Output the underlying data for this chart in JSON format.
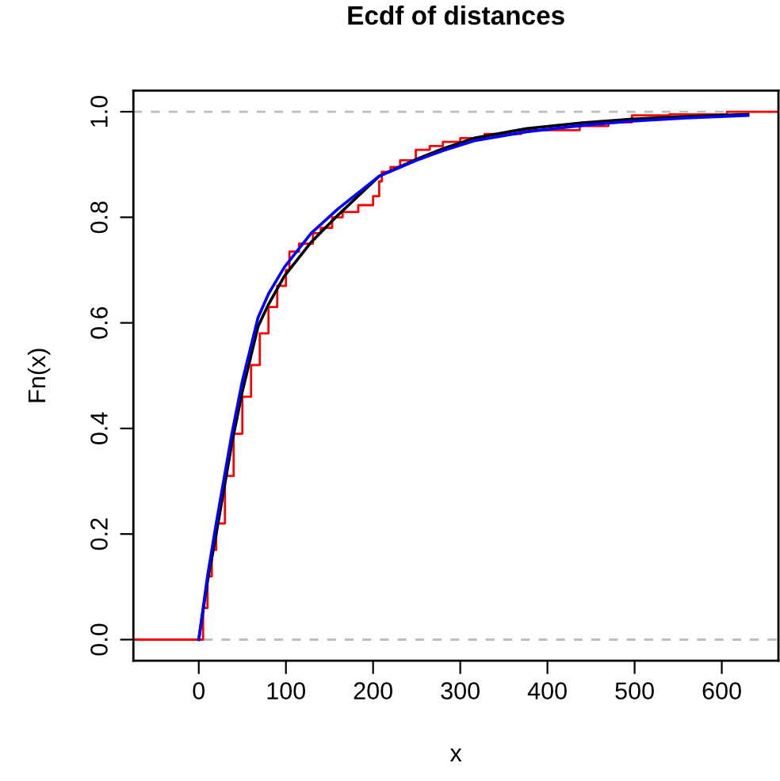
{
  "chart_data": {
    "type": "line",
    "title": "Ecdf of distances",
    "xlabel": "x",
    "ylabel": "Fn(x)",
    "xlim": [
      -75,
      665
    ],
    "ylim": [
      -0.04,
      1.04
    ],
    "xticks": [
      0,
      100,
      200,
      300,
      400,
      500,
      600
    ],
    "yticks": [
      {
        "value": 0,
        "label": "0.0"
      },
      {
        "value": 0.2,
        "label": "0.2"
      },
      {
        "value": 0.4,
        "label": "0.4"
      },
      {
        "value": 0.6,
        "label": "0.6"
      },
      {
        "value": 0.8,
        "label": "0.8"
      },
      {
        "value": 1,
        "label": "1.0"
      }
    ],
    "grid": false,
    "legend": false,
    "marker": "none",
    "ref_lines": [
      {
        "axis": "y",
        "value": 0,
        "color": "#bebebe",
        "line_style": "dashed"
      },
      {
        "axis": "y",
        "value": 1,
        "color": "#bebebe",
        "line_style": "dashed"
      }
    ],
    "series": [
      {
        "type": "step",
        "color": "#ff0000",
        "line_style": "solid",
        "x": [
          -75,
          0,
          5,
          10,
          15,
          20,
          30,
          40,
          50,
          60,
          70,
          80,
          90,
          100,
          104,
          115,
          131,
          140,
          153,
          165,
          183,
          200,
          207,
          210,
          220,
          231,
          249,
          265,
          280,
          300,
          328,
          370,
          437,
          470,
          497,
          540,
          606,
          665
        ],
        "values": [
          0,
          0,
          0.06,
          0.12,
          0.17,
          0.22,
          0.31,
          0.39,
          0.46,
          0.52,
          0.58,
          0.63,
          0.67,
          0.7,
          0.735,
          0.75,
          0.77,
          0.78,
          0.8,
          0.81,
          0.823,
          0.84,
          0.868,
          0.886,
          0.895,
          0.908,
          0.928,
          0.935,
          0.943,
          0.95,
          0.958,
          0.965,
          0.973,
          0.98,
          0.993,
          0.995,
          1.0,
          1.0
        ]
      },
      {
        "color": "#000000",
        "line_style": "solid",
        "x": [
          0,
          10,
          20,
          38,
          50,
          68,
          80,
          98,
          129,
          159,
          207,
          250,
          280,
          316,
          376,
          440,
          497,
          560,
          630
        ],
        "values": [
          0,
          0.11,
          0.2,
          0.372,
          0.47,
          0.593,
          0.635,
          0.688,
          0.753,
          0.803,
          0.878,
          0.91,
          0.93,
          0.95,
          0.968,
          0.979,
          0.986,
          0.991,
          0.995
        ]
      },
      {
        "color": "#0000ff",
        "line_style": "solid",
        "x": [
          0,
          10,
          20,
          38,
          50,
          68,
          80,
          98,
          129,
          159,
          207,
          250,
          280,
          316,
          376,
          440,
          497,
          560,
          630
        ],
        "values": [
          0,
          0.12,
          0.22,
          0.39,
          0.49,
          0.61,
          0.655,
          0.705,
          0.77,
          0.815,
          0.878,
          0.908,
          0.926,
          0.945,
          0.962,
          0.974,
          0.982,
          0.988,
          0.993
        ]
      }
    ]
  }
}
